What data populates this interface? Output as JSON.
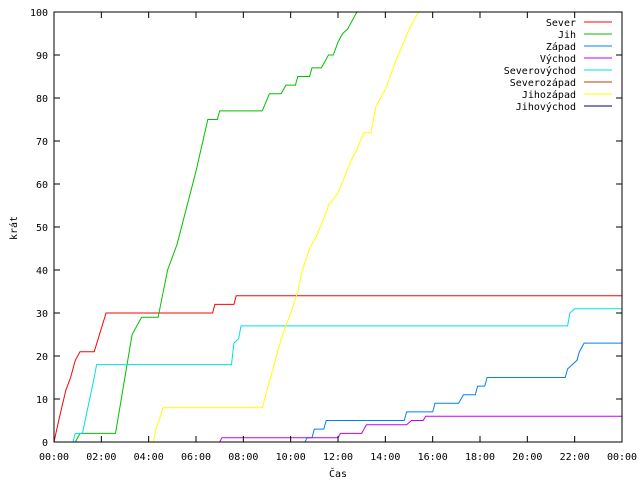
{
  "chart_data": {
    "type": "line",
    "title": "",
    "xlabel": "Čas",
    "ylabel": "krát",
    "xlim": [
      0,
      24
    ],
    "ylim": [
      0,
      100
    ],
    "xticks": [
      {
        "v": 0,
        "label": "00:00"
      },
      {
        "v": 2,
        "label": "02:00"
      },
      {
        "v": 4,
        "label": "04:00"
      },
      {
        "v": 6,
        "label": "06:00"
      },
      {
        "v": 8,
        "label": "08:00"
      },
      {
        "v": 10,
        "label": "10:00"
      },
      {
        "v": 12,
        "label": "12:00"
      },
      {
        "v": 14,
        "label": "14:00"
      },
      {
        "v": 16,
        "label": "16:00"
      },
      {
        "v": 18,
        "label": "18:00"
      },
      {
        "v": 20,
        "label": "20:00"
      },
      {
        "v": 22,
        "label": "22:00"
      },
      {
        "v": 24,
        "label": "00:00"
      }
    ],
    "yticks": [
      {
        "v": 0,
        "label": "0"
      },
      {
        "v": 10,
        "label": "10"
      },
      {
        "v": 20,
        "label": "20"
      },
      {
        "v": 30,
        "label": "30"
      },
      {
        "v": 40,
        "label": "40"
      },
      {
        "v": 50,
        "label": "50"
      },
      {
        "v": 60,
        "label": "60"
      },
      {
        "v": 70,
        "label": "70"
      },
      {
        "v": 80,
        "label": "80"
      },
      {
        "v": 90,
        "label": "90"
      },
      {
        "v": 100,
        "label": "100"
      }
    ],
    "grid": false,
    "legend": "top-right",
    "series": [
      {
        "name": "Sever",
        "color": "#ff0000",
        "points": [
          [
            0,
            0
          ],
          [
            0.2,
            5
          ],
          [
            0.5,
            12
          ],
          [
            0.7,
            15
          ],
          [
            0.9,
            19
          ],
          [
            1.1,
            21
          ],
          [
            1.7,
            21
          ],
          [
            2.2,
            30
          ],
          [
            6.7,
            30
          ],
          [
            6.8,
            32
          ],
          [
            7.6,
            32
          ],
          [
            7.7,
            34
          ],
          [
            24,
            34
          ]
        ]
      },
      {
        "name": "Jih",
        "color": "#00c000",
        "points": [
          [
            0.9,
            0
          ],
          [
            1.1,
            2
          ],
          [
            2.6,
            2
          ],
          [
            3.3,
            25
          ],
          [
            3.7,
            29
          ],
          [
            4.4,
            29
          ],
          [
            4.8,
            40
          ],
          [
            5.2,
            46
          ],
          [
            6.0,
            63
          ],
          [
            6.5,
            75
          ],
          [
            6.9,
            75
          ],
          [
            7.0,
            77
          ],
          [
            8.8,
            77
          ],
          [
            9.1,
            81
          ],
          [
            9.6,
            81
          ],
          [
            9.8,
            83
          ],
          [
            10.2,
            83
          ],
          [
            10.3,
            85
          ],
          [
            10.8,
            85
          ],
          [
            10.9,
            87
          ],
          [
            11.3,
            87
          ],
          [
            11.6,
            90
          ],
          [
            11.8,
            90
          ],
          [
            12.0,
            93
          ],
          [
            12.2,
            95
          ],
          [
            12.4,
            96
          ],
          [
            12.6,
            98
          ],
          [
            12.8,
            100
          ]
        ]
      },
      {
        "name": "Západ",
        "color": "#0080ff",
        "points": [
          [
            10.6,
            0
          ],
          [
            10.7,
            1
          ],
          [
            10.9,
            1
          ],
          [
            11.0,
            3
          ],
          [
            11.4,
            3
          ],
          [
            11.5,
            5
          ],
          [
            14.8,
            5
          ],
          [
            14.9,
            7
          ],
          [
            16.0,
            7
          ],
          [
            16.1,
            9
          ],
          [
            17.1,
            9
          ],
          [
            17.3,
            11
          ],
          [
            17.8,
            11
          ],
          [
            17.9,
            13
          ],
          [
            18.2,
            13
          ],
          [
            18.3,
            15
          ],
          [
            21.6,
            15
          ],
          [
            21.7,
            17
          ],
          [
            22.1,
            19
          ],
          [
            22.2,
            21
          ],
          [
            22.4,
            23
          ],
          [
            24,
            23
          ]
        ]
      },
      {
        "name": "Východ",
        "color": "#c000ff",
        "points": [
          [
            7.0,
            0
          ],
          [
            7.1,
            1
          ],
          [
            12.0,
            1
          ],
          [
            12.1,
            2
          ],
          [
            13.0,
            2
          ],
          [
            13.2,
            4
          ],
          [
            14.9,
            4
          ],
          [
            15.1,
            5
          ],
          [
            15.6,
            5
          ],
          [
            15.7,
            6
          ],
          [
            24,
            6
          ]
        ]
      },
      {
        "name": "Severovýchod",
        "color": "#00e0e0",
        "points": [
          [
            0.8,
            0
          ],
          [
            0.9,
            2
          ],
          [
            1.2,
            2
          ],
          [
            1.7,
            15
          ],
          [
            1.8,
            18
          ],
          [
            7.5,
            18
          ],
          [
            7.6,
            23
          ],
          [
            7.8,
            24
          ],
          [
            7.9,
            27
          ],
          [
            21.7,
            27
          ],
          [
            21.8,
            30
          ],
          [
            22.0,
            31
          ],
          [
            24,
            31
          ]
        ]
      },
      {
        "name": "Severozápad",
        "color": "#c04000",
        "points": []
      },
      {
        "name": "Jihozápad",
        "color": "#ffff00",
        "points": [
          [
            4.2,
            0
          ],
          [
            4.3,
            3
          ],
          [
            4.5,
            6
          ],
          [
            4.6,
            8
          ],
          [
            8.8,
            8
          ],
          [
            9.0,
            12
          ],
          [
            9.3,
            18
          ],
          [
            9.6,
            24
          ],
          [
            9.8,
            27
          ],
          [
            10.0,
            30
          ],
          [
            10.3,
            35
          ],
          [
            10.5,
            40
          ],
          [
            10.8,
            45
          ],
          [
            11.1,
            48
          ],
          [
            11.4,
            52
          ],
          [
            11.6,
            55
          ],
          [
            12.0,
            58
          ],
          [
            12.3,
            62
          ],
          [
            12.6,
            66
          ],
          [
            12.8,
            68
          ],
          [
            13.1,
            72
          ],
          [
            13.4,
            72
          ],
          [
            13.6,
            78
          ],
          [
            14.0,
            82
          ],
          [
            14.4,
            88
          ],
          [
            14.7,
            92
          ],
          [
            15.0,
            96
          ],
          [
            15.4,
            100
          ]
        ]
      },
      {
        "name": "Jihovýchod",
        "color": "#000080",
        "points": []
      }
    ]
  }
}
